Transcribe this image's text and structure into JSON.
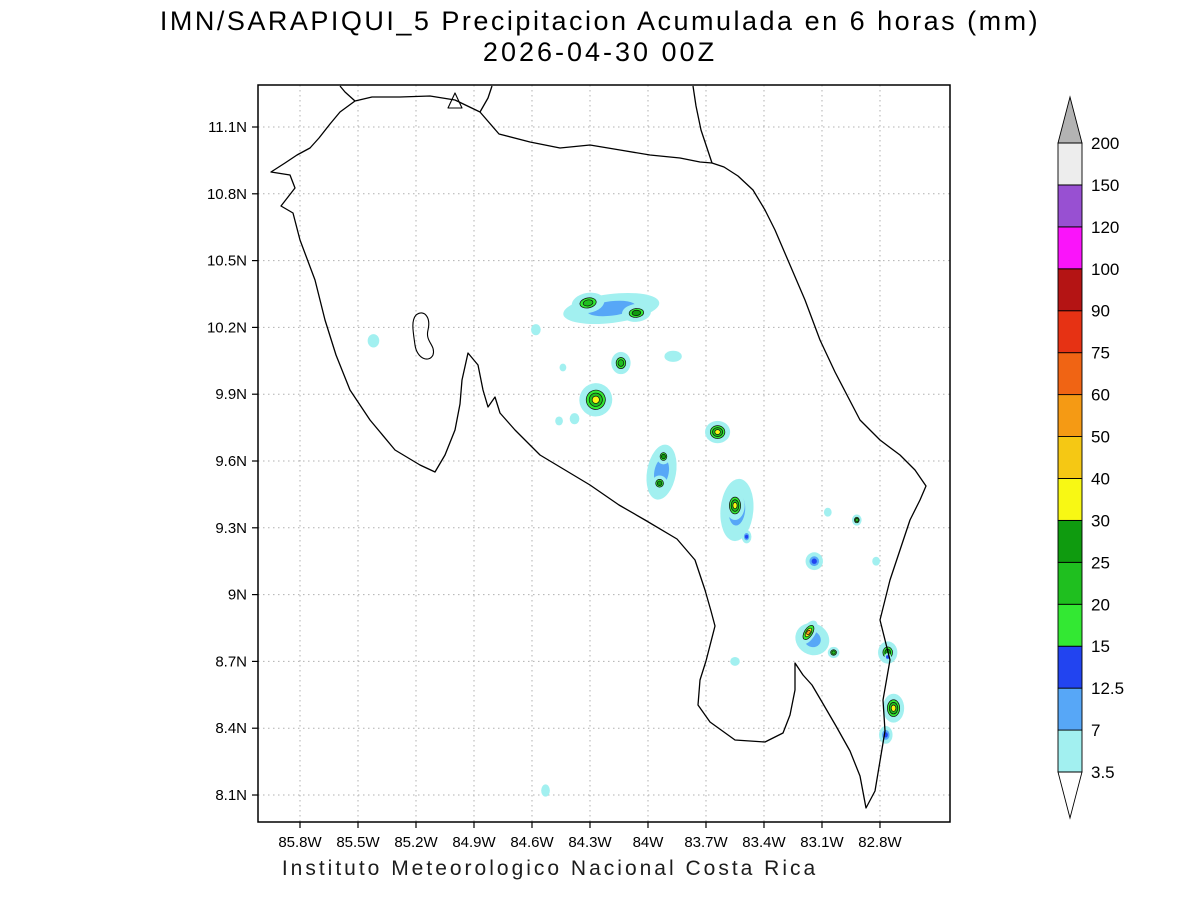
{
  "title": {
    "line1": "IMN/SARAPIQUI_5 Precipitacion Acumulada en 6 horas (mm)",
    "line2": "2026-04-30 00Z"
  },
  "footer": "Instituto Meteorologico Nacional Costa Rica",
  "chart_data": {
    "type": "heatmap",
    "title": "IMN/SARAPIQUI_5 Precipitacion Acumulada en 6 horas (mm)",
    "subtitle": "2026-04-30 00Z",
    "footer": "Instituto Meteorologico Nacional Costa Rica",
    "region": "Costa Rica",
    "units": "mm",
    "x_ticks": {
      "unit": "degrees west",
      "values": [
        85.8,
        85.5,
        85.2,
        84.9,
        84.6,
        84.3,
        84.0,
        83.7,
        83.4,
        83.1,
        82.8
      ],
      "labels": [
        "85.8W",
        "85.5W",
        "85.2W",
        "84.9W",
        "84.6W",
        "84.3W",
        "84W",
        "83.7W",
        "83.4W",
        "83.1W",
        "82.8W"
      ]
    },
    "y_ticks": {
      "unit": "degrees north",
      "values": [
        11.1,
        10.8,
        10.5,
        10.2,
        9.9,
        9.6,
        9.3,
        9.0,
        8.7,
        8.4,
        8.1
      ],
      "labels": [
        "11.1N",
        "10.8N",
        "10.5N",
        "10.2N",
        "9.9N",
        "9.6N",
        "9.3N",
        "9N",
        "8.7N",
        "8.4N",
        "8.1N"
      ]
    },
    "colorbar": {
      "levels": [
        3.5,
        7,
        12.5,
        15,
        20,
        25,
        30,
        40,
        50,
        60,
        75,
        90,
        100,
        120,
        150,
        200
      ],
      "labels": [
        "3.5",
        "7",
        "12.5",
        "15",
        "20",
        "25",
        "30",
        "40",
        "50",
        "60",
        "75",
        "90",
        "100",
        "120",
        "150",
        "200"
      ],
      "band_colors_low_to_high": [
        "#a2f0f0",
        "#57a7f7",
        "#2244f0",
        "#33e833",
        "#1fbf1f",
        "#0f9b0f",
        "#f8f814",
        "#f5c814",
        "#f59a14",
        "#f06414",
        "#e63214",
        "#b41414",
        "#fa14fa",
        "#9850d2",
        "#ededed"
      ],
      "under_color": "#ffffff",
      "over_color": "#b3b3b3"
    },
    "cells": [
      {
        "lon_w": 84.19,
        "lat_n": 10.285,
        "peak_mm": 8,
        "ew_deg": 0.5,
        "ns_deg": 0.13,
        "rot_deg": -7
      },
      {
        "lon_w": 84.31,
        "lat_n": 10.31,
        "peak_mm": 20,
        "ew_deg": 0.17,
        "ns_deg": 0.09,
        "rot_deg": -10
      },
      {
        "lon_w": 84.06,
        "lat_n": 10.265,
        "peak_mm": 25,
        "ew_deg": 0.15,
        "ns_deg": 0.08,
        "rot_deg": -5
      },
      {
        "lon_w": 85.42,
        "lat_n": 10.14,
        "peak_mm": 5,
        "ew_deg": 0.06,
        "ns_deg": 0.06,
        "rot_deg": 0
      },
      {
        "lon_w": 84.58,
        "lat_n": 10.19,
        "peak_mm": 5,
        "ew_deg": 0.05,
        "ns_deg": 0.05,
        "rot_deg": 0
      },
      {
        "lon_w": 83.87,
        "lat_n": 10.07,
        "peak_mm": 5,
        "ew_deg": 0.09,
        "ns_deg": 0.05,
        "rot_deg": 0
      },
      {
        "lon_w": 84.44,
        "lat_n": 10.02,
        "peak_mm": 5,
        "ew_deg": 0.035,
        "ns_deg": 0.035,
        "rot_deg": 0
      },
      {
        "lon_w": 84.14,
        "lat_n": 10.04,
        "peak_mm": 22,
        "ew_deg": 0.1,
        "ns_deg": 0.1,
        "rot_deg": 0
      },
      {
        "lon_w": 84.27,
        "lat_n": 9.875,
        "peak_mm": 30,
        "ew_deg": 0.17,
        "ns_deg": 0.15,
        "rot_deg": 20
      },
      {
        "lon_w": 84.38,
        "lat_n": 9.79,
        "peak_mm": 5,
        "ew_deg": 0.05,
        "ns_deg": 0.05,
        "rot_deg": 0
      },
      {
        "lon_w": 84.46,
        "lat_n": 9.78,
        "peak_mm": 5,
        "ew_deg": 0.04,
        "ns_deg": 0.04,
        "rot_deg": 0
      },
      {
        "lon_w": 83.64,
        "lat_n": 9.73,
        "peak_mm": 35,
        "ew_deg": 0.13,
        "ns_deg": 0.1,
        "rot_deg": 0
      },
      {
        "lon_w": 83.93,
        "lat_n": 9.55,
        "peak_mm": 8,
        "ew_deg": 0.15,
        "ns_deg": 0.25,
        "rot_deg": 10
      },
      {
        "lon_w": 83.92,
        "lat_n": 9.62,
        "peak_mm": 25,
        "ew_deg": 0.07,
        "ns_deg": 0.07,
        "rot_deg": 0
      },
      {
        "lon_w": 83.94,
        "lat_n": 9.5,
        "peak_mm": 25,
        "ew_deg": 0.08,
        "ns_deg": 0.07,
        "rot_deg": 0
      },
      {
        "lon_w": 83.54,
        "lat_n": 9.38,
        "peak_mm": 8,
        "ew_deg": 0.17,
        "ns_deg": 0.28,
        "rot_deg": 5
      },
      {
        "lon_w": 83.55,
        "lat_n": 9.4,
        "peak_mm": 35,
        "ew_deg": 0.1,
        "ns_deg": 0.13,
        "rot_deg": 0
      },
      {
        "lon_w": 83.49,
        "lat_n": 9.26,
        "peak_mm": 13,
        "ew_deg": 0.05,
        "ns_deg": 0.06,
        "rot_deg": 0
      },
      {
        "lon_w": 83.07,
        "lat_n": 9.37,
        "peak_mm": 5,
        "ew_deg": 0.04,
        "ns_deg": 0.04,
        "rot_deg": 0
      },
      {
        "lon_w": 82.92,
        "lat_n": 9.335,
        "peak_mm": 20,
        "ew_deg": 0.05,
        "ns_deg": 0.05,
        "rot_deg": 0
      },
      {
        "lon_w": 83.14,
        "lat_n": 9.15,
        "peak_mm": 13,
        "ew_deg": 0.09,
        "ns_deg": 0.08,
        "rot_deg": 0
      },
      {
        "lon_w": 82.82,
        "lat_n": 9.15,
        "peak_mm": 5,
        "ew_deg": 0.04,
        "ns_deg": 0.04,
        "rot_deg": 0
      },
      {
        "lon_w": 83.15,
        "lat_n": 8.8,
        "peak_mm": 8,
        "ew_deg": 0.18,
        "ns_deg": 0.14,
        "rot_deg": 30
      },
      {
        "lon_w": 83.17,
        "lat_n": 8.83,
        "peak_mm": 50,
        "ew_deg": 0.07,
        "ns_deg": 0.12,
        "rot_deg": 32
      },
      {
        "lon_w": 83.04,
        "lat_n": 8.74,
        "peak_mm": 20,
        "ew_deg": 0.06,
        "ns_deg": 0.05,
        "rot_deg": 0
      },
      {
        "lon_w": 83.55,
        "lat_n": 8.7,
        "peak_mm": 5,
        "ew_deg": 0.05,
        "ns_deg": 0.04,
        "rot_deg": 0
      },
      {
        "lon_w": 82.76,
        "lat_n": 8.74,
        "peak_mm": 25,
        "ew_deg": 0.1,
        "ns_deg": 0.1,
        "rot_deg": 0
      },
      {
        "lon_w": 82.76,
        "lat_n": 8.72,
        "peak_mm": 13,
        "ew_deg": 0.035,
        "ns_deg": 0.035,
        "rot_deg": 0
      },
      {
        "lon_w": 82.73,
        "lat_n": 8.49,
        "peak_mm": 35,
        "ew_deg": 0.11,
        "ns_deg": 0.13,
        "rot_deg": 0
      },
      {
        "lon_w": 82.77,
        "lat_n": 8.37,
        "peak_mm": 13,
        "ew_deg": 0.07,
        "ns_deg": 0.08,
        "rot_deg": 0
      },
      {
        "lon_w": 84.53,
        "lat_n": 8.12,
        "peak_mm": 5,
        "ew_deg": 0.045,
        "ns_deg": 0.055,
        "rot_deg": 0
      }
    ]
  }
}
